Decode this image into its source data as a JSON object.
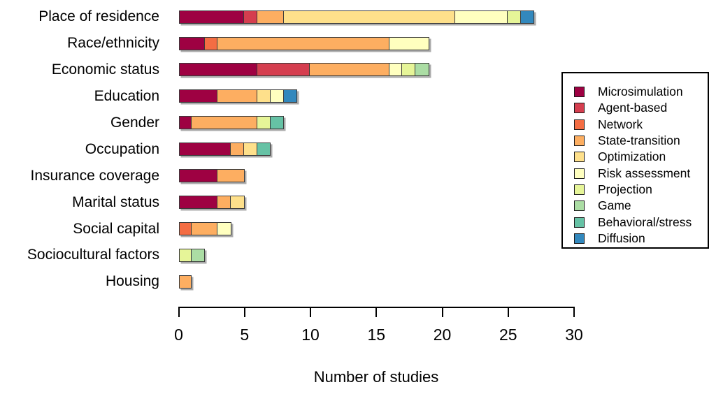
{
  "chart_data": {
    "type": "bar",
    "orientation": "horizontal",
    "stacked": true,
    "title": "",
    "xlabel": "Number of studies",
    "ylabel": "",
    "xlim": [
      0,
      30
    ],
    "xticks": [
      0,
      5,
      10,
      15,
      20,
      25,
      30
    ],
    "grid": false,
    "legend_position": "right",
    "categories": [
      "Place of residence",
      "Race/ethnicity",
      "Economic status",
      "Education",
      "Gender",
      "Occupation",
      "Insurance coverage",
      "Marital status",
      "Social capital",
      "Sociocultural factors",
      "Housing"
    ],
    "series": [
      {
        "name": "Microsimulation",
        "color": "#9E0142",
        "values": [
          5,
          2,
          6,
          3,
          1,
          4,
          3,
          3,
          0,
          0,
          0
        ]
      },
      {
        "name": "Agent-based",
        "color": "#D53E4F",
        "values": [
          1,
          0,
          4,
          0,
          0,
          0,
          0,
          0,
          0,
          0,
          0
        ]
      },
      {
        "name": "Network",
        "color": "#F46D43",
        "values": [
          0,
          1,
          0,
          0,
          0,
          0,
          0,
          0,
          1,
          0,
          0
        ]
      },
      {
        "name": "State-transition",
        "color": "#FDAE61",
        "values": [
          2,
          13,
          6,
          3,
          5,
          1,
          2,
          1,
          2,
          0,
          1
        ]
      },
      {
        "name": "Optimization",
        "color": "#FEE08B",
        "values": [
          13,
          0,
          0,
          1,
          0,
          1,
          0,
          1,
          0,
          0,
          0
        ]
      },
      {
        "name": "Risk assessment",
        "color": "#FFFFBF",
        "values": [
          4,
          3,
          1,
          1,
          0,
          0,
          0,
          0,
          1,
          0,
          0
        ]
      },
      {
        "name": "Projection",
        "color": "#E6F598",
        "values": [
          1,
          0,
          1,
          0,
          1,
          0,
          0,
          0,
          0,
          1,
          0
        ]
      },
      {
        "name": "Game",
        "color": "#ABDDA4",
        "values": [
          0,
          0,
          1,
          0,
          0,
          0,
          0,
          0,
          0,
          1,
          0
        ]
      },
      {
        "name": "Behavioral/stress",
        "color": "#66C2A5",
        "values": [
          0,
          0,
          0,
          0,
          1,
          1,
          0,
          0,
          0,
          0,
          0
        ]
      },
      {
        "name": "Diffusion",
        "color": "#3288BD",
        "values": [
          1,
          0,
          0,
          1,
          0,
          0,
          0,
          0,
          0,
          0,
          0
        ]
      }
    ]
  }
}
